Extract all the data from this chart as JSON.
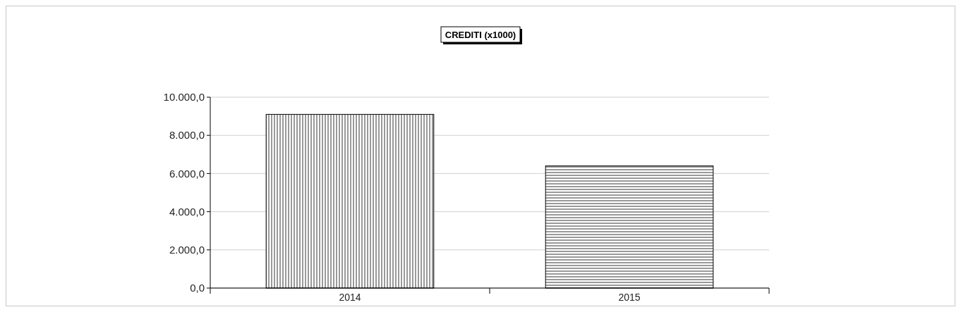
{
  "chart_data": {
    "type": "bar",
    "title": "CREDITI (x1000)",
    "categories": [
      "2014",
      "2015"
    ],
    "values": [
      9100,
      6400
    ],
    "colors": [
      "#000000",
      "#000000"
    ],
    "ylim": [
      0,
      10000
    ],
    "yticks": [
      {
        "value": 0,
        "label": "0,0"
      },
      {
        "value": 2000,
        "label": "2.000,0"
      },
      {
        "value": 4000,
        "label": "4.000,0"
      },
      {
        "value": 6000,
        "label": "6.000,0"
      },
      {
        "value": 8000,
        "label": "8.000,0"
      },
      {
        "value": 10000,
        "label": "10.000,0"
      }
    ],
    "grid": "y"
  }
}
